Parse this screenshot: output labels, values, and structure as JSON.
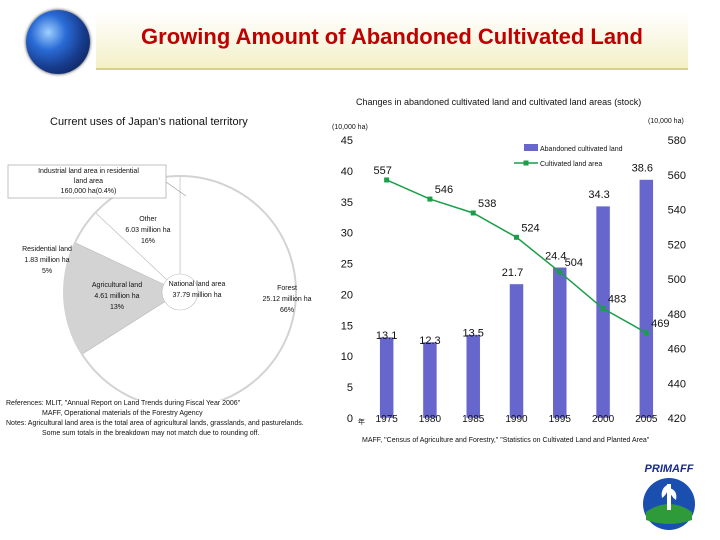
{
  "title": "Growing Amount of Abandoned Cultivated Land",
  "left_panel": {
    "heading": "Current uses of Japan's national territory",
    "callout_industrial": [
      "Industrial land area in residential",
      "land area",
      "160,000 ha(0.4%)"
    ],
    "residential": [
      "Residential land",
      "1.83 million ha",
      "5%"
    ],
    "other": [
      "Other",
      "6.03 million ha",
      "16%"
    ],
    "agricultural": [
      "Agricultural land",
      "4.61 million ha",
      "13%"
    ],
    "national": [
      "National land area",
      "37.79 million ha"
    ],
    "forest": [
      "Forest",
      "25.12 million ha",
      "66%"
    ]
  },
  "references": [
    "References: MLIT, \"Annual Report on Land Trends during Fiscal Year 2006\"",
    "MAFF, Operational materials of the Forestry Agency",
    "Notes: Agricultural land area is the total area of agricultural lands, grasslands, and pasturelands.",
    "Some sum totals in the breakdown may not match due to rounding off."
  ],
  "source": "MAFF, \"Census of Agriculture and Forestry,\" \"Statistics on Cultivated Land and Planted Area\"",
  "colors": {
    "bar": "#6666cc",
    "line": "#1a9e4a",
    "title": "#c00000",
    "pie_forest": "#ffffff",
    "pie_other": "#d3d3d3",
    "pie_agri": "#ffffff",
    "pie_resid": "#ffffff"
  },
  "chart_data": [
    {
      "type": "pie",
      "title": "Current uses of Japan's national territory",
      "total_label": "National land area 37.79 million ha",
      "slices": [
        {
          "name": "Forest",
          "value": 25.12,
          "percent": 66
        },
        {
          "name": "Other",
          "value": 6.03,
          "percent": 16
        },
        {
          "name": "Residential land",
          "value": 1.83,
          "percent": 5
        },
        {
          "name": "Agricultural land",
          "value": 4.61,
          "percent": 13
        }
      ]
    },
    {
      "type": "bar+line",
      "title": "Changes in abandoned cultivated land and cultivated land areas (stock)",
      "left_unit": "(10,000 ha)",
      "right_unit": "(10,000 ha)",
      "categories": [
        "1975",
        "1980",
        "1985",
        "1990",
        "1995",
        "2000",
        "2005"
      ],
      "series": [
        {
          "name": "Abandoned cultivated land",
          "type": "bar",
          "axis": "left",
          "values": [
            13.1,
            12.3,
            13.5,
            21.7,
            24.4,
            34.3,
            38.6
          ]
        },
        {
          "name": "Cultivated land area",
          "type": "line",
          "axis": "right",
          "values": [
            557,
            546,
            538,
            524,
            504,
            483,
            469
          ]
        }
      ],
      "left_axis": {
        "min": 0,
        "max": 45,
        "ticks": [
          0,
          5,
          10,
          15,
          20,
          25,
          30,
          35,
          40,
          45
        ]
      },
      "right_axis": {
        "min": 420,
        "max": 580,
        "ticks": [
          420,
          440,
          460,
          480,
          500,
          520,
          540,
          560,
          580
        ]
      },
      "end_label": "年",
      "legend_position": "top-right"
    }
  ]
}
